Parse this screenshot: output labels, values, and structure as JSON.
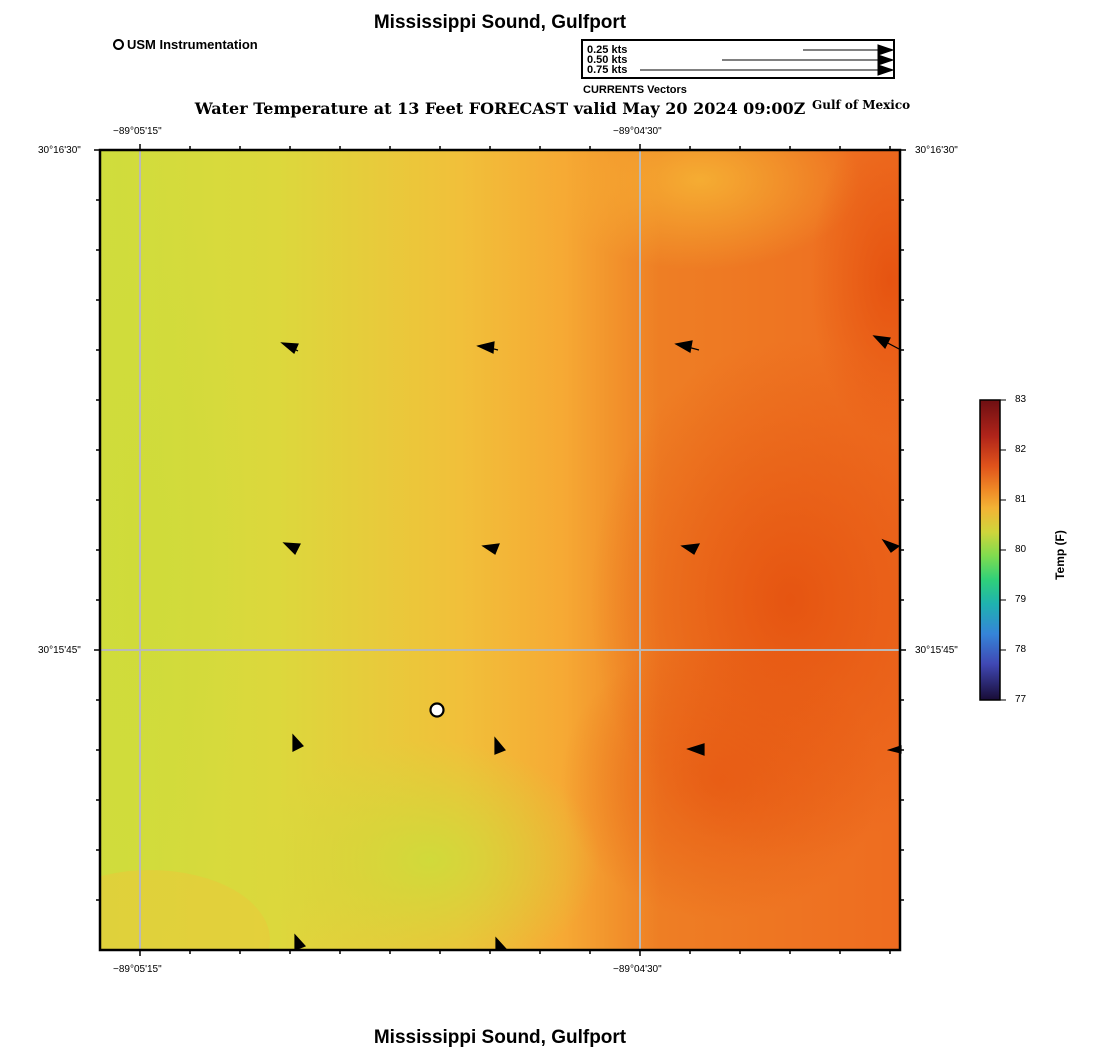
{
  "header": {
    "title": "Mississippi Sound, Gulfport"
  },
  "footer": {
    "title": "Mississippi Sound, Gulfport"
  },
  "legend": {
    "station_label": "USM Instrumentation"
  },
  "vector_scale": {
    "labels": [
      "0.25 kts",
      "0.50 kts",
      "0.75 kts"
    ],
    "caption": "CURRENTS Vectors"
  },
  "map": {
    "title": "Water Temperature at 13 Feet FORECAST valid May 20 2024 09:00Z",
    "region_label": "Gulf of Mexico",
    "x_ticks": [
      "−89°05'15\"",
      "−89°04'30\""
    ],
    "y_ticks": [
      "30°16'30\"",
      "30°15'45\""
    ]
  },
  "colorbar": {
    "title": "Temp (F)",
    "ticks": [
      "83",
      "82",
      "81",
      "80",
      "79",
      "78",
      "77"
    ],
    "colors": [
      "#6e0f12",
      "#c63a1a",
      "#ec6a1c",
      "#f6b23a",
      "#d7d53b",
      "#a3e04b",
      "#35d46a",
      "#22b4a8",
      "#3a84d8",
      "#3a4cb0",
      "#1a0f3a"
    ]
  }
}
